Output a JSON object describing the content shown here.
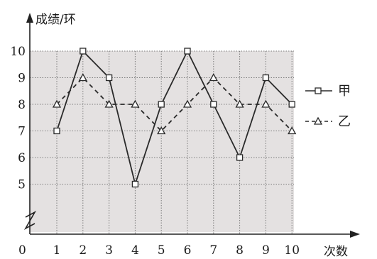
{
  "chart_data": {
    "type": "line",
    "title": "",
    "xlabel": "次数",
    "ylabel": "成绩/环",
    "origin_label": "0",
    "x": [
      1,
      2,
      3,
      4,
      5,
      6,
      7,
      8,
      9,
      10
    ],
    "y_ticks": [
      5,
      6,
      7,
      8,
      9,
      10
    ],
    "ylim": [
      4,
      10
    ],
    "y_axis_break": true,
    "grid": true,
    "legend_position": "right",
    "series": [
      {
        "name": "甲",
        "line_style": "solid",
        "marker": "square",
        "values": [
          7,
          10,
          9,
          5,
          8,
          10,
          8,
          6,
          9,
          8
        ]
      },
      {
        "name": "乙",
        "line_style": "dashed",
        "marker": "triangle",
        "values": [
          8,
          9,
          8,
          8,
          7,
          8,
          9,
          8,
          8,
          7
        ]
      }
    ]
  },
  "colors": {
    "plot_background": "#e4e1e1",
    "line": "#2a2a2a"
  }
}
